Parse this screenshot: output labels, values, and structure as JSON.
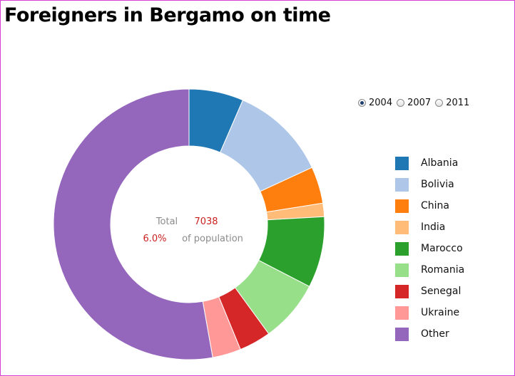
{
  "chart_data": {
    "type": "pie",
    "title": "Foreigners in Bergamo on time",
    "year_options": [
      {
        "label": "2004",
        "selected": true
      },
      {
        "label": "2007",
        "selected": false
      },
      {
        "label": "2011",
        "selected": false
      }
    ],
    "slices": [
      {
        "label": "Albania",
        "value": 6.5,
        "color": "#1f77b4"
      },
      {
        "label": "Bolivia",
        "value": 11.6,
        "color": "#aec7e8"
      },
      {
        "label": "China",
        "value": 4.4,
        "color": "#ff7f0e"
      },
      {
        "label": "India",
        "value": 1.6,
        "color": "#ffbb78"
      },
      {
        "label": "Marocco",
        "value": 8.5,
        "color": "#2ca02c"
      },
      {
        "label": "Romania",
        "value": 7.4,
        "color": "#98df8a"
      },
      {
        "label": "Senegal",
        "value": 3.8,
        "color": "#d62728"
      },
      {
        "label": "Ukraine",
        "value": 3.4,
        "color": "#ff9896"
      },
      {
        "label": "Other",
        "value": 52.8,
        "color": "#9467bd"
      }
    ],
    "center": {
      "total_label": "Total",
      "total_value": "7038",
      "percent_value": "6.0%",
      "percent_label": "of population"
    },
    "legend_position": "right"
  }
}
